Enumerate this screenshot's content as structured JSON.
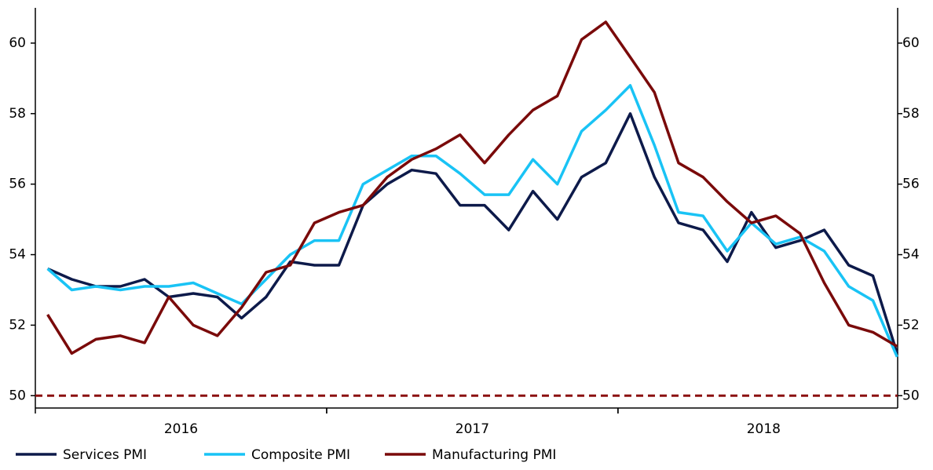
{
  "chart_data": {
    "type": "line",
    "x": [
      2016.042,
      2016.125,
      2016.208,
      2016.292,
      2016.375,
      2016.458,
      2016.542,
      2016.625,
      2016.708,
      2016.792,
      2016.875,
      2016.958,
      2017.042,
      2017.125,
      2017.208,
      2017.292,
      2017.375,
      2017.458,
      2017.542,
      2017.625,
      2017.708,
      2017.792,
      2017.875,
      2017.958,
      2018.042,
      2018.125,
      2018.208,
      2018.292,
      2018.375,
      2018.458,
      2018.542,
      2018.625,
      2018.708,
      2018.792,
      2018.875,
      2018.958
    ],
    "series": [
      {
        "name": "Services PMI",
        "color": "#0d1a4a",
        "values": [
          53.6,
          53.3,
          53.1,
          53.1,
          53.3,
          52.8,
          52.9,
          52.8,
          52.2,
          52.8,
          53.8,
          53.7,
          53.7,
          55.4,
          56.0,
          56.4,
          56.3,
          55.4,
          55.4,
          54.7,
          55.8,
          55.0,
          56.2,
          56.6,
          58.0,
          56.2,
          54.9,
          54.7,
          53.8,
          55.2,
          54.2,
          54.4,
          54.7,
          53.7,
          53.4,
          51.2
        ]
      },
      {
        "name": "Composite PMI",
        "color": "#19c3f5",
        "values": [
          53.6,
          53.0,
          53.1,
          53.0,
          53.1,
          53.1,
          53.2,
          52.9,
          52.6,
          53.3,
          54.0,
          54.4,
          54.4,
          56.0,
          56.4,
          56.8,
          56.8,
          56.3,
          55.7,
          55.7,
          56.7,
          56.0,
          57.5,
          58.1,
          58.8,
          57.1,
          55.2,
          55.1,
          54.1,
          54.9,
          54.3,
          54.5,
          54.1,
          53.1,
          52.7,
          51.1
        ]
      },
      {
        "name": "Manufacturing PMI",
        "color": "#7a0a0a",
        "values": [
          52.3,
          51.2,
          51.6,
          51.7,
          51.5,
          52.8,
          52.0,
          51.7,
          52.5,
          53.5,
          53.7,
          54.9,
          55.2,
          55.4,
          56.2,
          56.7,
          57.0,
          57.4,
          56.6,
          57.4,
          58.1,
          58.5,
          60.1,
          60.6,
          59.6,
          58.6,
          56.6,
          56.2,
          55.5,
          54.9,
          55.1,
          54.6,
          53.2,
          52.0,
          51.8,
          51.4
        ]
      }
    ],
    "xlim": [
      2016,
      2018.96
    ],
    "xticks": [
      {
        "value": 2016.5,
        "label": "2016"
      },
      {
        "value": 2017.5,
        "label": "2017"
      },
      {
        "value": 2018.5,
        "label": "2018"
      }
    ],
    "ylim": [
      49.65,
      61
    ],
    "yticks": [
      50,
      52,
      54,
      56,
      58,
      60
    ],
    "y2lim": [
      49.65,
      61
    ],
    "y2ticks": [
      50,
      52,
      54,
      56,
      58,
      60
    ],
    "reference_line": {
      "value": 50,
      "color": "#8b1010"
    },
    "legend": "bottom-left"
  }
}
